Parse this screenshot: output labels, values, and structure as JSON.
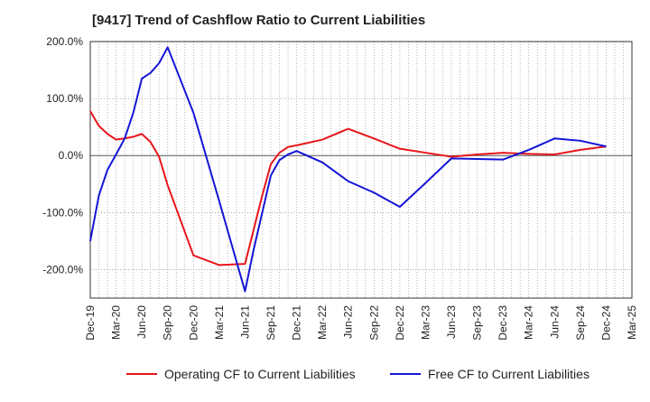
{
  "chart_data": {
    "type": "line",
    "title": "[9417]  Trend of Cashflow Ratio to Current Liabilities",
    "xlabel": "",
    "ylabel": "",
    "ylim": [
      -250,
      200
    ],
    "y_ticks": [
      200,
      100,
      0,
      -100,
      -200
    ],
    "y_tick_labels": [
      "200.0%",
      "100.0%",
      "0.0%",
      "-100.0%",
      "-200.0%"
    ],
    "x_range": [
      "2019-12",
      "2025-03"
    ],
    "x_tick_labels": [
      "Dec-19",
      "Mar-20",
      "Jun-20",
      "Sep-20",
      "Dec-20",
      "Mar-21",
      "Jun-21",
      "Sep-21",
      "Dec-21",
      "Mar-22",
      "Jun-22",
      "Sep-22",
      "Dec-22",
      "Mar-23",
      "Jun-23",
      "Sep-23",
      "Dec-23",
      "Mar-24",
      "Jun-24",
      "Sep-24",
      "Dec-24",
      "Mar-25"
    ],
    "grid": true,
    "legend_position": "bottom",
    "series": [
      {
        "name": "Operating CF to Current Liabilities",
        "color": "#e8161b",
        "points": [
          [
            "2019-12",
            78
          ],
          [
            "2020-01",
            52
          ],
          [
            "2020-02",
            38
          ],
          [
            "2020-03",
            28
          ],
          [
            "2020-04",
            30
          ],
          [
            "2020-05",
            33
          ],
          [
            "2020-06",
            38
          ],
          [
            "2020-07",
            24
          ],
          [
            "2020-08",
            -2
          ],
          [
            "2020-09",
            -52
          ],
          [
            "2020-12",
            -175
          ],
          [
            "2021-03",
            -192
          ],
          [
            "2021-06",
            -190
          ],
          [
            "2021-07",
            -130
          ],
          [
            "2021-08",
            -70
          ],
          [
            "2021-09",
            -15
          ],
          [
            "2021-10",
            5
          ],
          [
            "2021-11",
            15
          ],
          [
            "2021-12",
            18
          ],
          [
            "2022-03",
            28
          ],
          [
            "2022-06",
            47
          ],
          [
            "2022-09",
            30
          ],
          [
            "2022-12",
            12
          ],
          [
            "2023-03",
            5
          ],
          [
            "2023-06",
            -2
          ],
          [
            "2023-09",
            2
          ],
          [
            "2023-12",
            5
          ],
          [
            "2024-03",
            3
          ],
          [
            "2024-06",
            2
          ],
          [
            "2024-09",
            10
          ],
          [
            "2024-12",
            16
          ]
        ]
      },
      {
        "name": "Free CF to Current Liabilities",
        "color": "#1515d6",
        "points": [
          [
            "2019-12",
            -150
          ],
          [
            "2020-01",
            -70
          ],
          [
            "2020-02",
            -25
          ],
          [
            "2020-03",
            2
          ],
          [
            "2020-04",
            30
          ],
          [
            "2020-05",
            75
          ],
          [
            "2020-06",
            135
          ],
          [
            "2020-07",
            145
          ],
          [
            "2020-08",
            162
          ],
          [
            "2020-09",
            190
          ],
          [
            "2020-12",
            75
          ],
          [
            "2021-03",
            -80
          ],
          [
            "2021-06",
            -238
          ],
          [
            "2021-07",
            -165
          ],
          [
            "2021-08",
            -100
          ],
          [
            "2021-09",
            -35
          ],
          [
            "2021-10",
            -8
          ],
          [
            "2021-11",
            2
          ],
          [
            "2021-12",
            8
          ],
          [
            "2022-03",
            -12
          ],
          [
            "2022-06",
            -45
          ],
          [
            "2022-09",
            -65
          ],
          [
            "2022-12",
            -90
          ],
          [
            "2023-03",
            -48
          ],
          [
            "2023-06",
            -5
          ],
          [
            "2023-09",
            -6
          ],
          [
            "2023-12",
            -7
          ],
          [
            "2024-03",
            10
          ],
          [
            "2024-06",
            30
          ],
          [
            "2024-09",
            26
          ],
          [
            "2024-12",
            16
          ]
        ]
      }
    ]
  }
}
